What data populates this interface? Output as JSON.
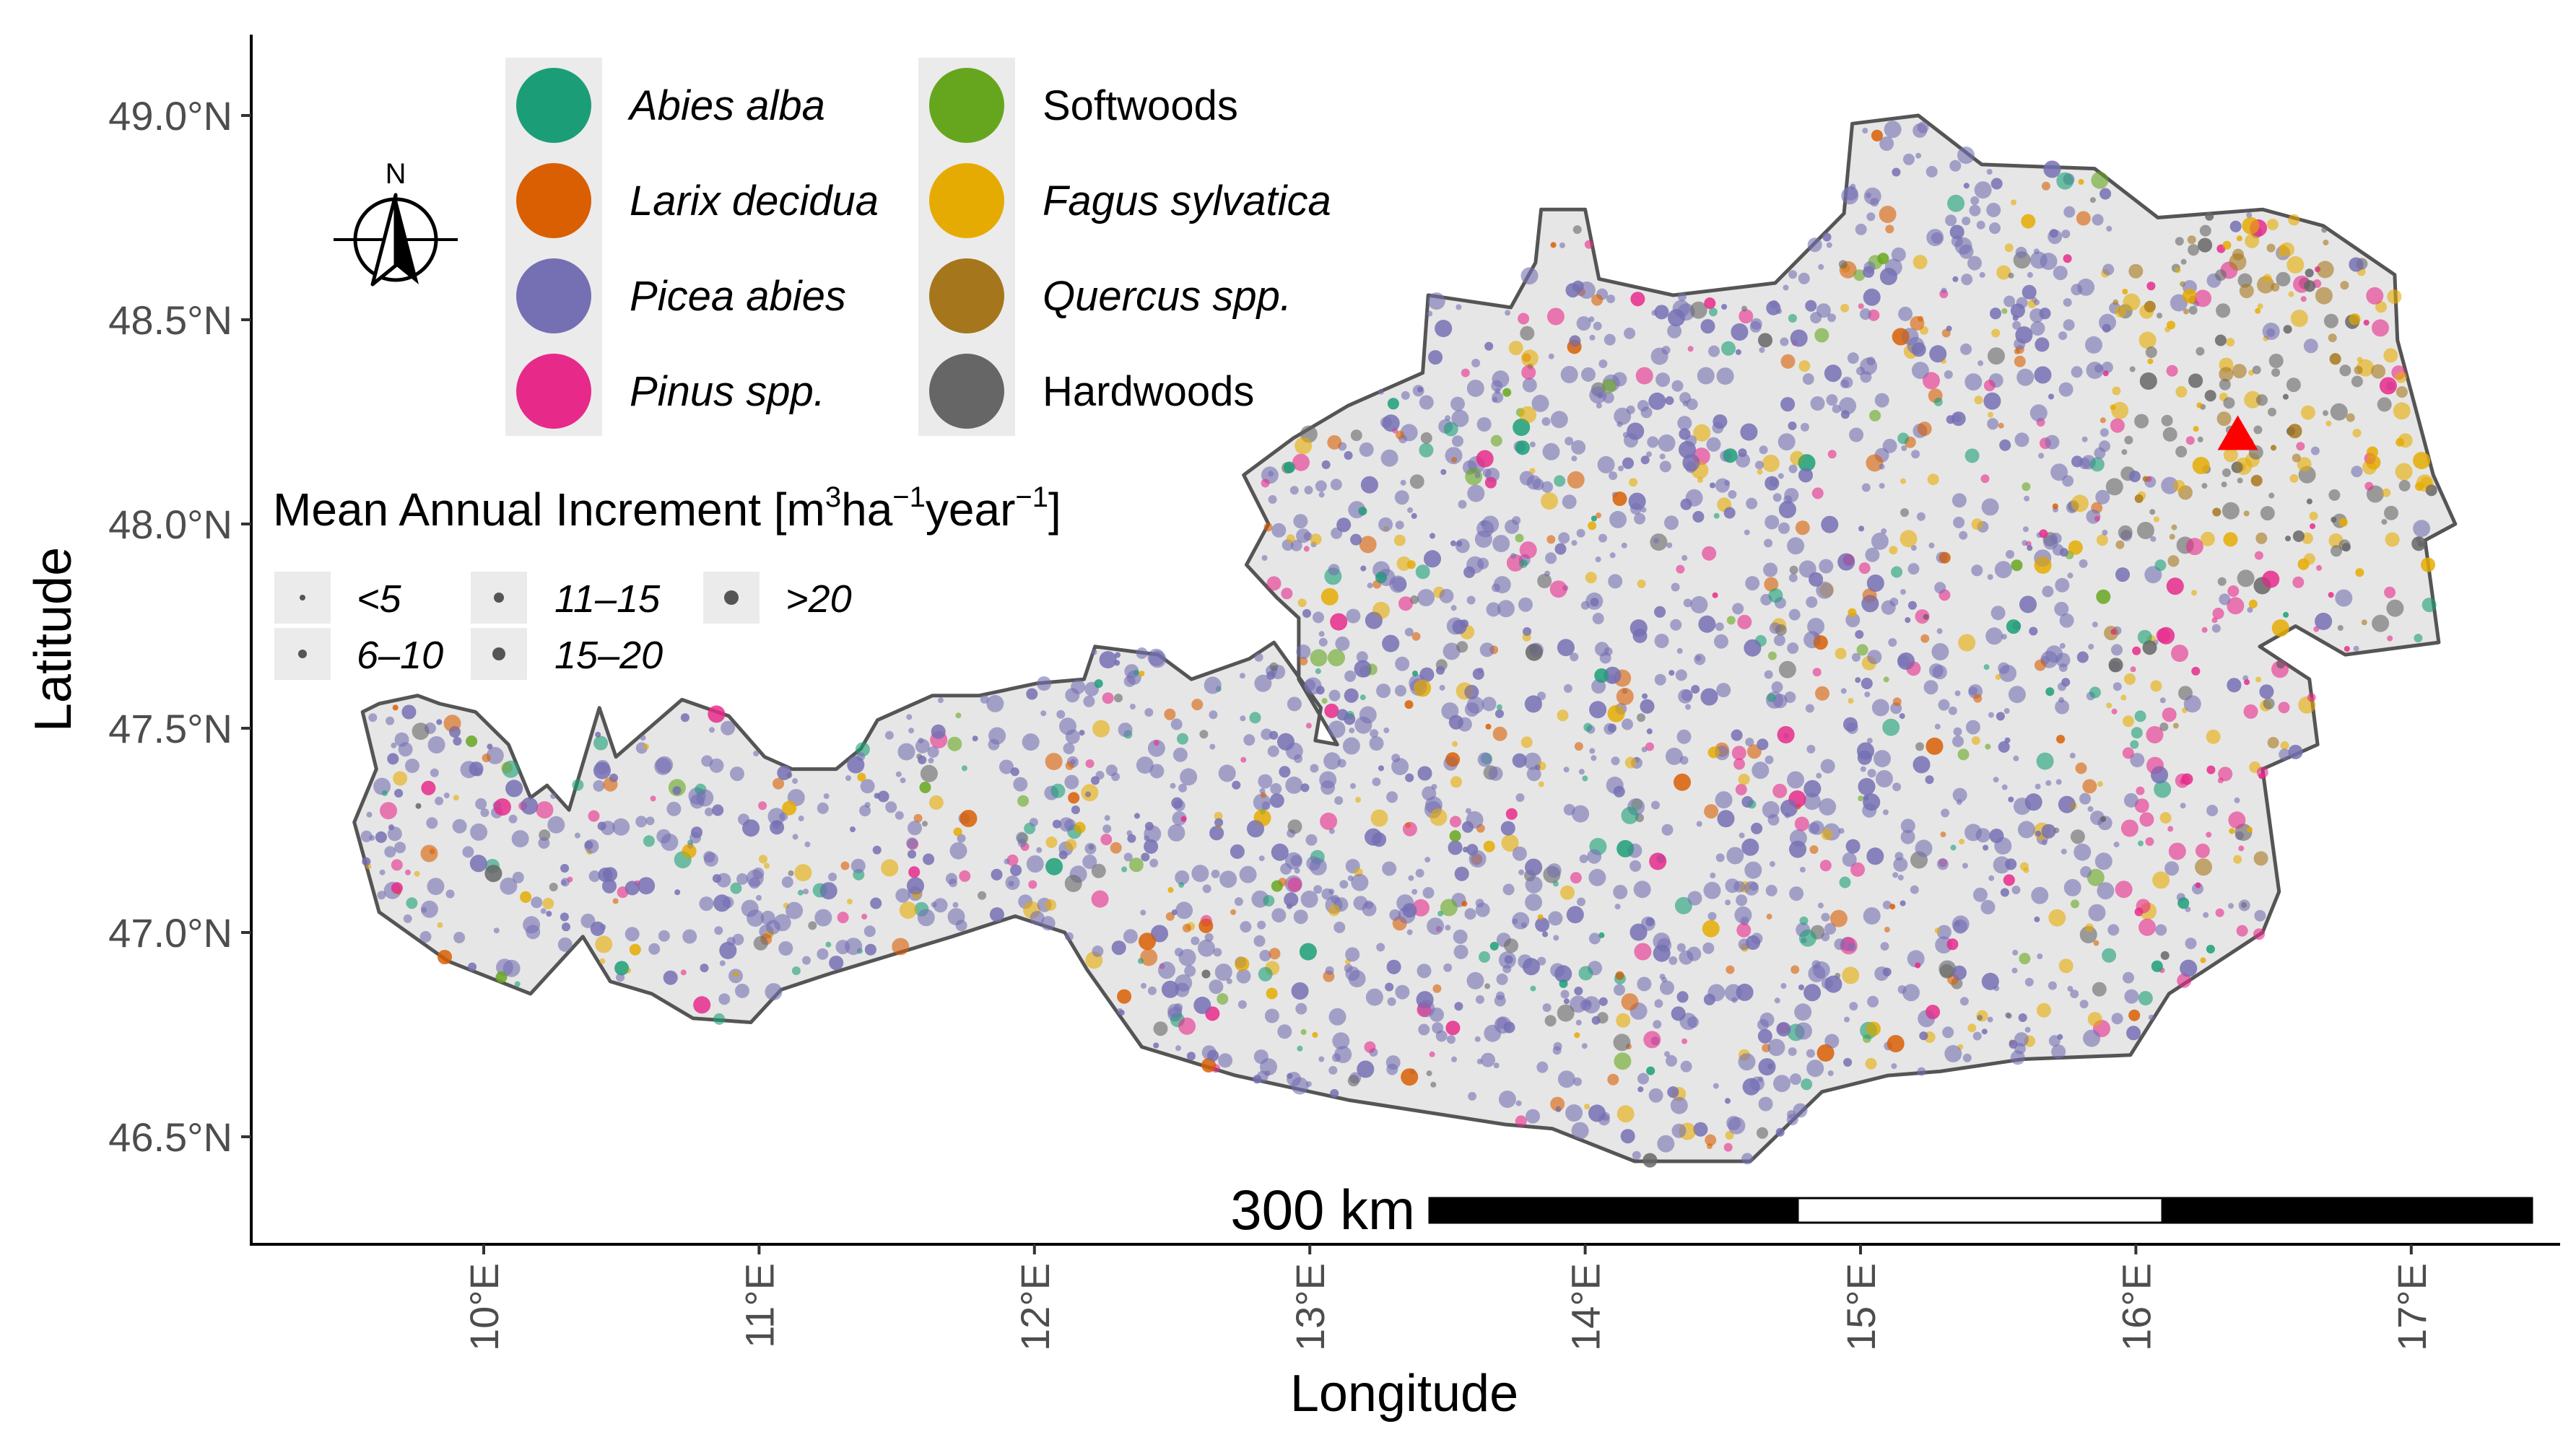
{
  "map": {
    "x_axis": {
      "title": "Longitude",
      "ticks": [
        {
          "value": 10,
          "label": "10°E"
        },
        {
          "value": 11,
          "label": "11°E"
        },
        {
          "value": 12,
          "label": "12°E"
        },
        {
          "value": 13,
          "label": "13°E"
        },
        {
          "value": 14,
          "label": "14°E"
        },
        {
          "value": 15,
          "label": "15°E"
        },
        {
          "value": 16,
          "label": "16°E"
        },
        {
          "value": 17,
          "label": "17°E"
        }
      ]
    },
    "y_axis": {
      "title": "Latitude",
      "ticks": [
        {
          "value": 46.5,
          "label": "46.5°N"
        },
        {
          "value": 47.0,
          "label": "47.0°N"
        },
        {
          "value": 47.5,
          "label": "47.5°N"
        },
        {
          "value": 48.0,
          "label": "48.0°N"
        },
        {
          "value": 48.5,
          "label": "48.5°N"
        },
        {
          "value": 49.0,
          "label": "49.0°N"
        }
      ]
    },
    "extent": {
      "lon": [
        9.0,
        17.5
      ],
      "lat": [
        46.3,
        49.2
      ]
    },
    "species_legend": [
      {
        "name": "Abies alba",
        "color": "#1b9e77",
        "italic": true
      },
      {
        "name": "Larix decidua",
        "color": "#d95f02",
        "italic": true
      },
      {
        "name": "Picea abies",
        "color": "#7570b3",
        "italic": true
      },
      {
        "name": "Pinus spp.",
        "color": "#e7298a",
        "italic": true
      },
      {
        "name": "Softwoods",
        "color": "#66a61e",
        "italic": false
      },
      {
        "name": "Fagus sylvatica",
        "color": "#e6ab02",
        "italic": true
      },
      {
        "name": "Quercus spp.",
        "color": "#a6761d",
        "italic": true
      },
      {
        "name": "Hardwoods",
        "color": "#666666",
        "italic": false
      }
    ],
    "size_legend": {
      "title_main": "Mean Annual Increment [m",
      "title_sup1": "3",
      "title_mid1": "ha",
      "title_sup2": "−1",
      "title_mid2": "year",
      "title_sup3": "−1",
      "title_end": "]",
      "classes": [
        "<5",
        "6–10",
        "11–15",
        "15–20",
        ">20"
      ]
    },
    "north_arrow": {
      "label": "N"
    },
    "scale_bar": {
      "label": "300 km"
    },
    "marker": {
      "name": "red-triangle",
      "color": "#ff0000",
      "lon": 16.37,
      "lat": 48.22
    },
    "outline_lonlat": [
      [
        9.56,
        47.54
      ],
      [
        9.62,
        47.56
      ],
      [
        9.76,
        47.58
      ],
      [
        9.84,
        47.56
      ],
      [
        9.97,
        47.54
      ],
      [
        10.09,
        47.46
      ],
      [
        10.17,
        47.33
      ],
      [
        10.23,
        47.36
      ],
      [
        10.31,
        47.3
      ],
      [
        10.42,
        47.55
      ],
      [
        10.48,
        47.43
      ],
      [
        10.72,
        47.57
      ],
      [
        10.89,
        47.53
      ],
      [
        11.02,
        47.43
      ],
      [
        11.12,
        47.4
      ],
      [
        11.28,
        47.4
      ],
      [
        11.37,
        47.45
      ],
      [
        11.43,
        47.52
      ],
      [
        11.63,
        47.58
      ],
      [
        11.8,
        47.58
      ],
      [
        12.01,
        47.61
      ],
      [
        12.18,
        47.62
      ],
      [
        12.22,
        47.7
      ],
      [
        12.45,
        47.68
      ],
      [
        12.57,
        47.62
      ],
      [
        12.78,
        47.67
      ],
      [
        12.87,
        47.71
      ],
      [
        13.04,
        47.55
      ],
      [
        13.02,
        47.47
      ],
      [
        13.1,
        47.46
      ],
      [
        12.96,
        47.62
      ],
      [
        12.96,
        47.77
      ],
      [
        12.88,
        47.82
      ],
      [
        12.77,
        47.9
      ],
      [
        12.85,
        48.0
      ],
      [
        12.76,
        48.12
      ],
      [
        12.94,
        48.21
      ],
      [
        13.14,
        48.29
      ],
      [
        13.41,
        48.37
      ],
      [
        13.43,
        48.56
      ],
      [
        13.73,
        48.53
      ],
      [
        13.82,
        48.64
      ],
      [
        13.84,
        48.77
      ],
      [
        14.0,
        48.77
      ],
      [
        14.05,
        48.6
      ],
      [
        14.32,
        48.56
      ],
      [
        14.69,
        48.59
      ],
      [
        14.94,
        48.76
      ],
      [
        14.97,
        48.98
      ],
      [
        15.21,
        49.0
      ],
      [
        15.44,
        48.88
      ],
      [
        15.85,
        48.87
      ],
      [
        16.08,
        48.75
      ],
      [
        16.46,
        48.77
      ],
      [
        16.68,
        48.73
      ],
      [
        16.94,
        48.61
      ],
      [
        16.95,
        48.45
      ],
      [
        17.08,
        48.12
      ],
      [
        17.16,
        48.0
      ],
      [
        17.05,
        47.96
      ],
      [
        17.1,
        47.71
      ],
      [
        16.76,
        47.68
      ],
      [
        16.58,
        47.75
      ],
      [
        16.45,
        47.7
      ],
      [
        16.63,
        47.62
      ],
      [
        16.66,
        47.46
      ],
      [
        16.46,
        47.4
      ],
      [
        16.52,
        47.1
      ],
      [
        16.46,
        47.0
      ],
      [
        16.12,
        46.85
      ],
      [
        15.98,
        46.7
      ],
      [
        15.59,
        46.69
      ],
      [
        15.29,
        46.66
      ],
      [
        15.1,
        46.65
      ],
      [
        14.86,
        46.61
      ],
      [
        14.6,
        46.44
      ],
      [
        14.43,
        46.44
      ],
      [
        14.18,
        46.44
      ],
      [
        13.88,
        46.52
      ],
      [
        13.71,
        46.53
      ],
      [
        13.14,
        46.59
      ],
      [
        12.73,
        46.65
      ],
      [
        12.39,
        46.72
      ],
      [
        12.19,
        46.91
      ],
      [
        12.11,
        47.0
      ],
      [
        11.93,
        47.04
      ],
      [
        11.7,
        46.99
      ],
      [
        11.26,
        46.9
      ],
      [
        11.08,
        46.86
      ],
      [
        10.97,
        46.78
      ],
      [
        10.76,
        46.79
      ],
      [
        10.61,
        46.85
      ],
      [
        10.46,
        46.88
      ],
      [
        10.36,
        46.99
      ],
      [
        10.17,
        46.85
      ],
      [
        9.87,
        46.93
      ],
      [
        9.62,
        47.05
      ],
      [
        9.53,
        47.27
      ],
      [
        9.61,
        47.4
      ],
      [
        9.56,
        47.54
      ]
    ]
  }
}
